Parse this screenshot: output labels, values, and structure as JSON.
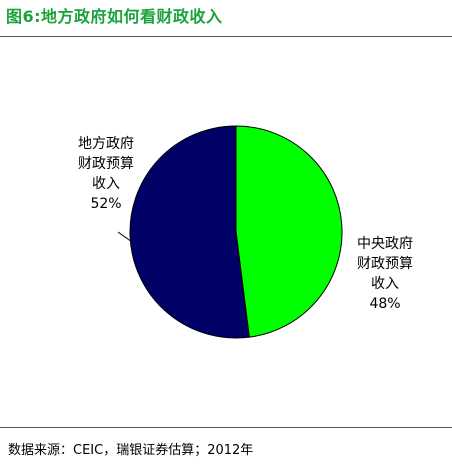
{
  "header": {
    "title": "图6:地方政府如何看财政收入"
  },
  "chart_data": {
    "type": "pie",
    "title": "图6:地方政府如何看财政收入",
    "slices": [
      {
        "name": "中央政府财政预算收入",
        "label_lines": [
          "中央政府",
          "财政预算",
          "收入"
        ],
        "value": 48,
        "value_label": "48%",
        "color": "#00ff00"
      },
      {
        "name": "地方政府财政预算收入",
        "label_lines": [
          "地方政府",
          "财政预算",
          "收入"
        ],
        "value": 52,
        "value_label": "52%",
        "color": "#000066"
      }
    ],
    "start_angle_deg": 0,
    "direction": "clockwise",
    "legend": "none"
  },
  "footer": {
    "source": "数据来源：CEIC，瑞银证券估算；2012年"
  }
}
